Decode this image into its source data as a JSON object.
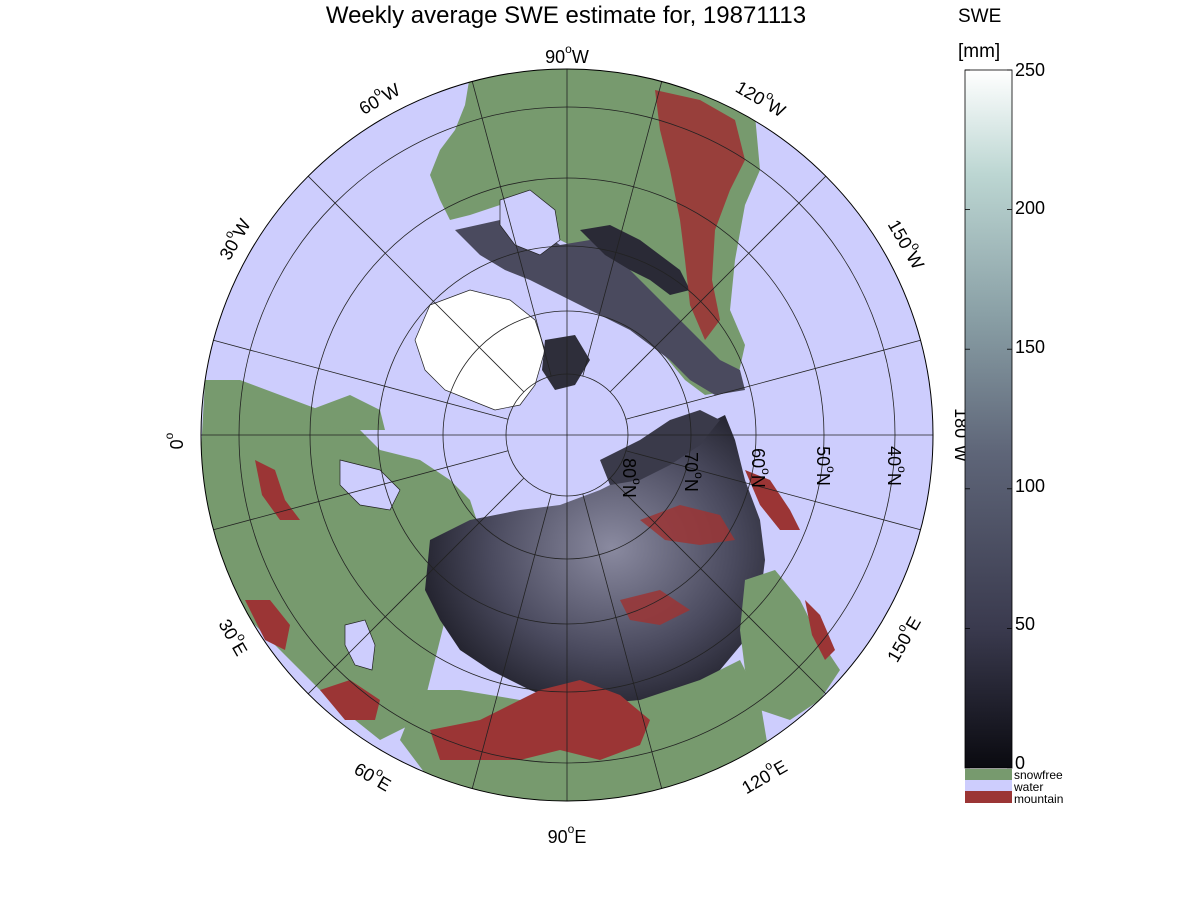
{
  "title": "Weekly average SWE estimate for, 19871113",
  "colorbar": {
    "title_line1": "SWE",
    "title_line2": "[mm]",
    "ticks": [
      "250",
      "200",
      "150",
      "100",
      "50",
      "0"
    ],
    "tick_values": [
      250,
      200,
      150,
      100,
      50,
      0
    ],
    "range": [
      0,
      250
    ],
    "gradient_stops": [
      "#0a0a10",
      "#3a3a4e",
      "#5e6578",
      "#8aa0a6",
      "#bcd6d2",
      "#ffffff"
    ]
  },
  "legend": [
    {
      "label": "snowfree",
      "color": "#779a6e"
    },
    {
      "label": "water",
      "color": "#cdcdfd"
    },
    {
      "label": "mountain",
      "color": "#9b3535"
    }
  ],
  "map": {
    "projection": "north-polar-stereographic",
    "ocean_color": "#cdcdfd",
    "land_snowfree_color": "#779a6e",
    "mountain_color": "#9b3535",
    "snow_color_low": "#2a2a38",
    "snow_color_high": "#8a8aa0",
    "longitude_labels": [
      {
        "deg": "90",
        "dir": "W"
      },
      {
        "deg": "120",
        "dir": "W"
      },
      {
        "deg": "150",
        "dir": "W"
      },
      {
        "deg": "180",
        "dir": "W"
      },
      {
        "deg": "150",
        "dir": "E"
      },
      {
        "deg": "120",
        "dir": "E"
      },
      {
        "deg": "90",
        "dir": "E"
      },
      {
        "deg": "60",
        "dir": "E"
      },
      {
        "deg": "30",
        "dir": "E"
      },
      {
        "deg": "0",
        "dir": ""
      },
      {
        "deg": "30",
        "dir": "W"
      },
      {
        "deg": "60",
        "dir": "W"
      }
    ],
    "latitude_labels": [
      {
        "deg": "80",
        "dir": "N"
      },
      {
        "deg": "70",
        "dir": "N"
      },
      {
        "deg": "60",
        "dir": "N"
      },
      {
        "deg": "50",
        "dir": "N"
      },
      {
        "deg": "40",
        "dir": "N"
      }
    ],
    "degree_symbol": "o"
  }
}
